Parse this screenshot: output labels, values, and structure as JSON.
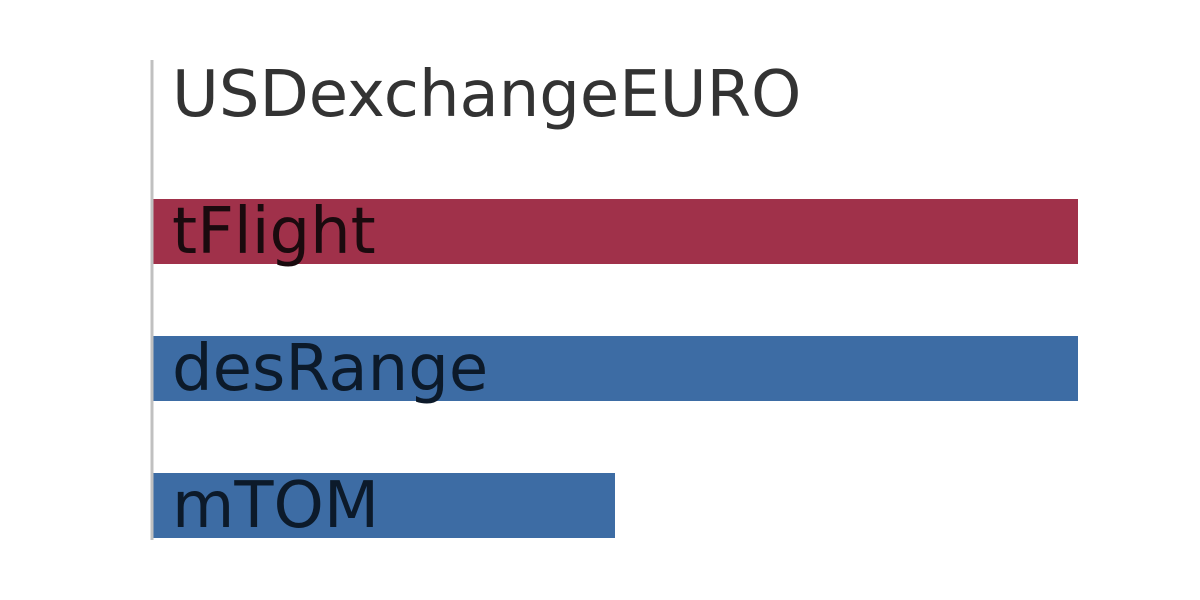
{
  "chart_data": {
    "type": "bar",
    "orientation": "horizontal",
    "categories": [
      "USDexchangeEURO",
      "tFlight",
      "desRange",
      "mTOM"
    ],
    "values": [
      0,
      1,
      1,
      0.5
    ],
    "bar_colors": [
      "#a0314a",
      "#a0314a",
      "#3d6ca4",
      "#3d6ca4"
    ],
    "label_colors": [
      "#333333",
      "#1a0a0e",
      "#0c1a2a",
      "#0c1a2a"
    ],
    "axis_color": "#c0c0c0",
    "xlim": [
      0,
      1
    ],
    "grid": false,
    "legend": "none"
  }
}
